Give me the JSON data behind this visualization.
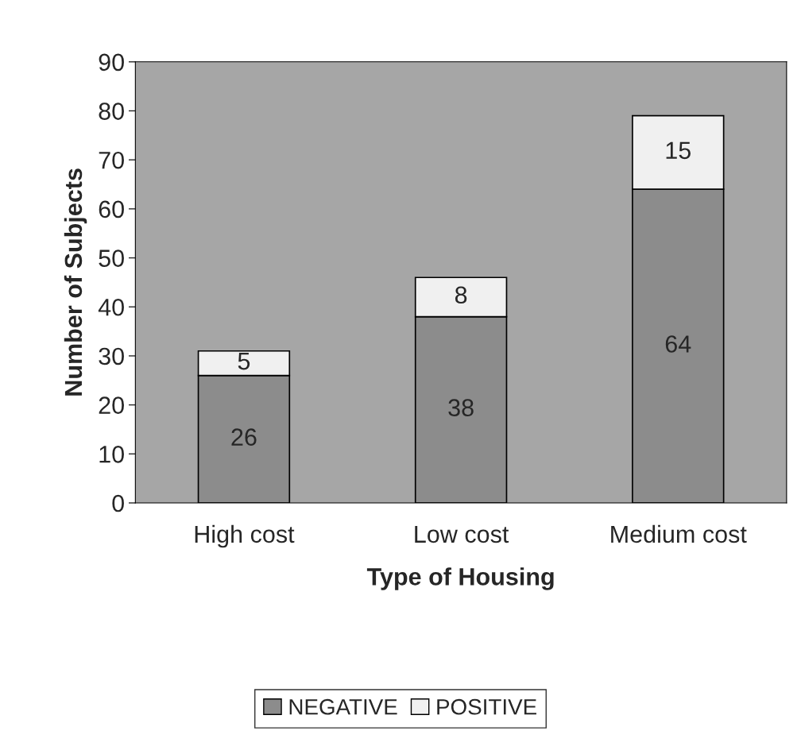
{
  "chart_data": {
    "type": "bar",
    "stacked": true,
    "xlabel": "Type of Housing",
    "ylabel": "Number of Subjects",
    "categories": [
      "High cost",
      "Low cost",
      "Medium cost"
    ],
    "series": [
      {
        "name": "NEGATIVE",
        "color": "#8c8c8c",
        "values": [
          26,
          38,
          64
        ]
      },
      {
        "name": "POSITIVE",
        "color": "#f0f0f0",
        "values": [
          5,
          8,
          15
        ]
      }
    ],
    "ylim": [
      0,
      90
    ],
    "yticks": [
      0,
      10,
      20,
      30,
      40,
      50,
      60,
      70,
      80,
      90
    ],
    "grid": false,
    "legend": "bottom",
    "data_labels": true
  }
}
